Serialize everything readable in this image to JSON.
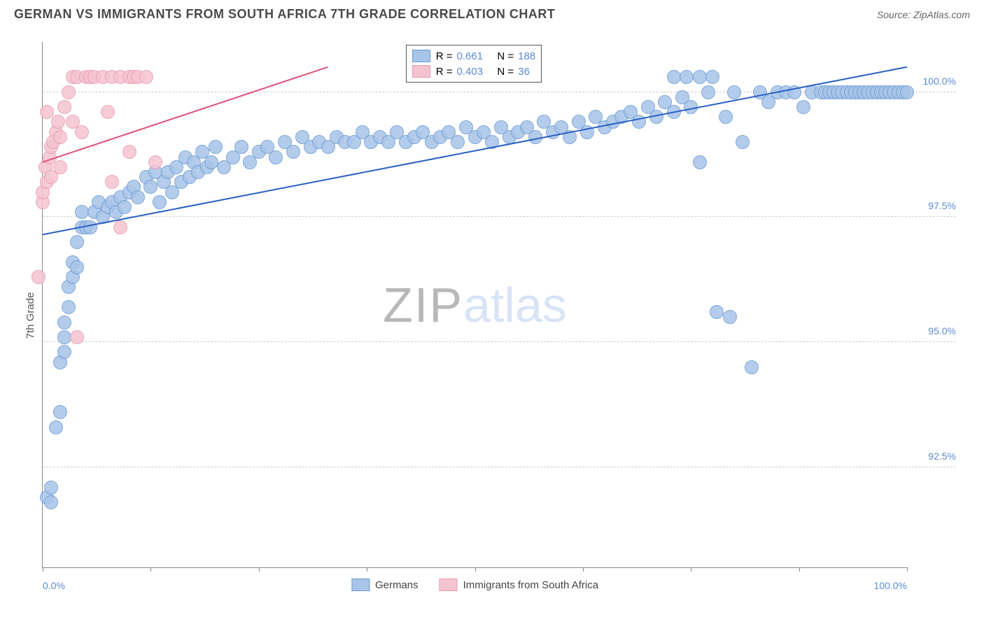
{
  "title": "GERMAN VS IMMIGRANTS FROM SOUTH AFRICA 7TH GRADE CORRELATION CHART",
  "source": "Source: ZipAtlas.com",
  "ylabel": "7th Grade",
  "watermark": {
    "part1": "ZIP",
    "part2": "atlas"
  },
  "chart": {
    "type": "scatter",
    "xlim": [
      0,
      100
    ],
    "ylim": [
      90.5,
      101
    ],
    "yticks": [
      92.5,
      95.0,
      97.5,
      100.0
    ],
    "ytick_labels": [
      "92.5%",
      "95.0%",
      "97.5%",
      "100.0%"
    ],
    "xticks": [
      0,
      12.5,
      25,
      37.5,
      50,
      62.5,
      75,
      87.5,
      100
    ],
    "xtick_labels": {
      "0": "0.0%",
      "100": "100.0%"
    },
    "grid_color": "#cccccc",
    "axis_color": "#888888",
    "background": "#ffffff",
    "marker_radius": 10,
    "marker_stroke_width": 1.5,
    "marker_fill_opacity": 0.3,
    "trend_line_width": 2,
    "series": [
      {
        "name": "Germans",
        "color_stroke": "#6b9bd4",
        "color_fill": "#a8c4e8",
        "trend_color": "#2860c4",
        "R": "0.661",
        "N": "188",
        "trend": {
          "x1": 0,
          "y1": 97.15,
          "x2": 100,
          "y2": 100.5
        },
        "points": [
          [
            0.5,
            91.9
          ],
          [
            1,
            91.8
          ],
          [
            1,
            92.1
          ],
          [
            1.5,
            93.3
          ],
          [
            2,
            93.6
          ],
          [
            2,
            94.6
          ],
          [
            2.5,
            94.8
          ],
          [
            2.5,
            95.1
          ],
          [
            2.5,
            95.4
          ],
          [
            3,
            95.7
          ],
          [
            3,
            96.1
          ],
          [
            3.5,
            96.3
          ],
          [
            3.5,
            96.6
          ],
          [
            4,
            96.5
          ],
          [
            4,
            97.0
          ],
          [
            4.5,
            97.3
          ],
          [
            4.5,
            97.6
          ],
          [
            5,
            97.3
          ],
          [
            5.5,
            97.3
          ],
          [
            6,
            97.6
          ],
          [
            6.5,
            97.8
          ],
          [
            7,
            97.5
          ],
          [
            7.5,
            97.7
          ],
          [
            8,
            97.8
          ],
          [
            8.5,
            97.6
          ],
          [
            9,
            97.9
          ],
          [
            9.5,
            97.7
          ],
          [
            10,
            98.0
          ],
          [
            10.5,
            98.1
          ],
          [
            11,
            97.9
          ],
          [
            12,
            98.3
          ],
          [
            12.5,
            98.1
          ],
          [
            13,
            98.4
          ],
          [
            13.5,
            97.8
          ],
          [
            14,
            98.2
          ],
          [
            14.5,
            98.4
          ],
          [
            15,
            98.0
          ],
          [
            15.5,
            98.5
          ],
          [
            16,
            98.2
          ],
          [
            16.5,
            98.7
          ],
          [
            17,
            98.3
          ],
          [
            17.5,
            98.6
          ],
          [
            18,
            98.4
          ],
          [
            18.5,
            98.8
          ],
          [
            19,
            98.5
          ],
          [
            19.5,
            98.6
          ],
          [
            20,
            98.9
          ],
          [
            21,
            98.5
          ],
          [
            22,
            98.7
          ],
          [
            23,
            98.9
          ],
          [
            24,
            98.6
          ],
          [
            25,
            98.8
          ],
          [
            26,
            98.9
          ],
          [
            27,
            98.7
          ],
          [
            28,
            99.0
          ],
          [
            29,
            98.8
          ],
          [
            30,
            99.1
          ],
          [
            31,
            98.9
          ],
          [
            32,
            99.0
          ],
          [
            33,
            98.9
          ],
          [
            34,
            99.1
          ],
          [
            35,
            99.0
          ],
          [
            36,
            99.0
          ],
          [
            37,
            99.2
          ],
          [
            38,
            99.0
          ],
          [
            39,
            99.1
          ],
          [
            40,
            99.0
          ],
          [
            41,
            99.2
          ],
          [
            42,
            99.0
          ],
          [
            43,
            99.1
          ],
          [
            44,
            99.2
          ],
          [
            45,
            99.0
          ],
          [
            46,
            99.1
          ],
          [
            47,
            99.2
          ],
          [
            48,
            99.0
          ],
          [
            49,
            99.3
          ],
          [
            50,
            99.1
          ],
          [
            51,
            99.2
          ],
          [
            52,
            99.0
          ],
          [
            53,
            99.3
          ],
          [
            54,
            99.1
          ],
          [
            55,
            99.2
          ],
          [
            56,
            99.3
          ],
          [
            57,
            99.1
          ],
          [
            58,
            99.4
          ],
          [
            59,
            99.2
          ],
          [
            60,
            99.3
          ],
          [
            61,
            99.1
          ],
          [
            62,
            99.4
          ],
          [
            63,
            99.2
          ],
          [
            64,
            99.5
          ],
          [
            65,
            99.3
          ],
          [
            66,
            99.4
          ],
          [
            67,
            99.5
          ],
          [
            68,
            99.6
          ],
          [
            69,
            99.4
          ],
          [
            70,
            99.7
          ],
          [
            71,
            99.5
          ],
          [
            72,
            99.8
          ],
          [
            73,
            99.6
          ],
          [
            74,
            99.9
          ],
          [
            75,
            99.7
          ],
          [
            76,
            98.6
          ],
          [
            77,
            100
          ],
          [
            78,
            95.6
          ],
          [
            79,
            99.5
          ],
          [
            79.5,
            95.5
          ],
          [
            80,
            100
          ],
          [
            81,
            99.0
          ],
          [
            82,
            94.5
          ],
          [
            83,
            100
          ],
          [
            84,
            99.8
          ],
          [
            85,
            100
          ],
          [
            86,
            100
          ],
          [
            87,
            100
          ],
          [
            88,
            99.7
          ],
          [
            89,
            100
          ],
          [
            90,
            100
          ],
          [
            90.5,
            100
          ],
          [
            91,
            100
          ],
          [
            91.5,
            100
          ],
          [
            92,
            100
          ],
          [
            92.5,
            100
          ],
          [
            93,
            100
          ],
          [
            93.5,
            100
          ],
          [
            94,
            100
          ],
          [
            94.5,
            100
          ],
          [
            95,
            100
          ],
          [
            95.5,
            100
          ],
          [
            96,
            100
          ],
          [
            96.5,
            100
          ],
          [
            97,
            100
          ],
          [
            97.5,
            100
          ],
          [
            98,
            100
          ],
          [
            98.5,
            100
          ],
          [
            99,
            100
          ],
          [
            99.5,
            100
          ],
          [
            100,
            100
          ],
          [
            73,
            100.3
          ],
          [
            74.5,
            100.3
          ],
          [
            76,
            100.3
          ],
          [
            77.5,
            100.3
          ]
        ]
      },
      {
        "name": "Immigrants from South Africa",
        "color_stroke": "#e89ab0",
        "color_fill": "#f5c4d2",
        "trend_color": "#e05078",
        "R": "0.403",
        "N": "36",
        "trend": {
          "x1": 0,
          "y1": 98.6,
          "x2": 33,
          "y2": 100.5
        },
        "points": [
          [
            -0.5,
            96.3
          ],
          [
            0,
            97.8
          ],
          [
            0,
            98.0
          ],
          [
            0.5,
            98.2
          ],
          [
            0.3,
            98.5
          ],
          [
            0.8,
            98.7
          ],
          [
            1,
            98.3
          ],
          [
            1,
            98.9
          ],
          [
            1.5,
            99.2
          ],
          [
            1.2,
            99.0
          ],
          [
            0.5,
            99.6
          ],
          [
            1.8,
            99.4
          ],
          [
            2,
            98.5
          ],
          [
            2,
            99.1
          ],
          [
            2.5,
            99.7
          ],
          [
            3,
            100
          ],
          [
            3.5,
            99.4
          ],
          [
            3.5,
            100.3
          ],
          [
            4,
            100.3
          ],
          [
            4.5,
            99.2
          ],
          [
            5,
            100.3
          ],
          [
            5.5,
            100.3
          ],
          [
            6,
            100.3
          ],
          [
            7,
            100.3
          ],
          [
            7.5,
            99.6
          ],
          [
            8,
            100.3
          ],
          [
            9,
            100.3
          ],
          [
            10,
            100.3
          ],
          [
            10.5,
            100.3
          ],
          [
            11,
            100.3
          ],
          [
            8,
            98.2
          ],
          [
            9,
            97.3
          ],
          [
            10,
            98.8
          ],
          [
            13,
            98.6
          ],
          [
            4,
            95.1
          ],
          [
            12,
            100.3
          ]
        ]
      }
    ]
  },
  "legend_top": {
    "r_label": "R =",
    "n_label": "N ="
  },
  "legend_bottom": [
    {
      "label": "Germans",
      "stroke": "#6b9bd4",
      "fill": "#a8c4e8"
    },
    {
      "label": "Immigrants from South Africa",
      "stroke": "#e89ab0",
      "fill": "#f5c4d2"
    }
  ]
}
